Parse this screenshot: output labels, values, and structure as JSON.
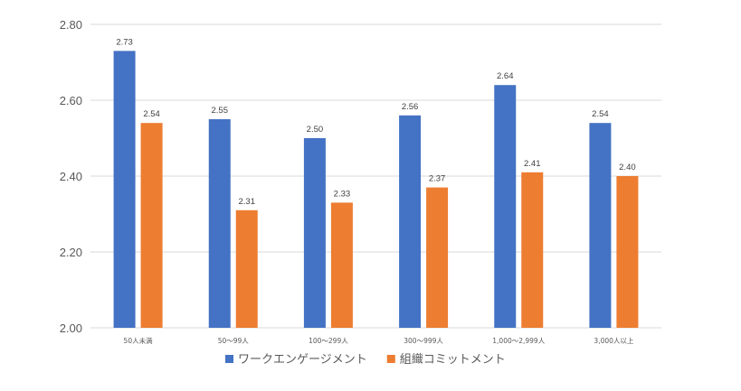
{
  "chart_data": {
    "type": "bar",
    "categories": [
      "50人未満",
      "50〜99人",
      "100〜299人",
      "300〜999人",
      "1,000〜2,999人",
      "3,000人以上"
    ],
    "series": [
      {
        "name": "ワークエンゲージメント",
        "color": "#4472C4",
        "values": [
          2.73,
          2.55,
          2.5,
          2.56,
          2.64,
          2.54
        ]
      },
      {
        "name": "組織コミットメント",
        "color": "#ED7D31",
        "values": [
          2.54,
          2.31,
          2.33,
          2.37,
          2.41,
          2.4
        ]
      }
    ],
    "ylim": [
      2.0,
      2.8
    ],
    "yticks": [
      "2.00",
      "2.20",
      "2.40",
      "2.60",
      "2.80"
    ],
    "grid": true,
    "legend_position": "bottom",
    "title": "",
    "xlabel": "",
    "ylabel": ""
  }
}
